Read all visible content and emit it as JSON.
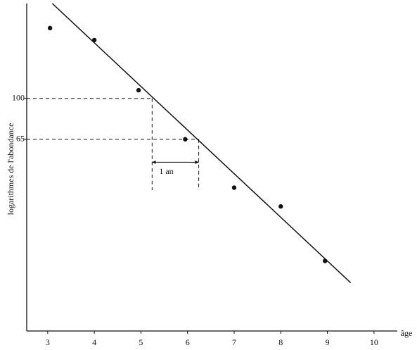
{
  "chart_data": {
    "type": "scatter",
    "xlabel": "âge",
    "ylabel": "logarithmes de l'abondance",
    "x": [
      3.05,
      4,
      4.95,
      5.95,
      7,
      8,
      8.95
    ],
    "values": [
      210,
      185,
      109,
      65,
      39,
      32,
      18
    ],
    "color": "#111111",
    "xlim": [
      2.55,
      10.5
    ],
    "xticks": [
      3,
      4,
      5,
      6,
      7,
      8,
      9,
      10
    ],
    "ylim": [
      8.6,
      272
    ],
    "yticks": [
      100,
      65
    ],
    "log_y": true,
    "fit": {
      "x": [
        3.1,
        9.5
      ],
      "values": [
        272,
        14.3
      ]
    },
    "guides": [
      {
        "x": 5.24,
        "y": 100,
        "bottom": 38
      },
      {
        "x": 6.24,
        "y": 65,
        "bottom": 38
      }
    ],
    "annotation": {
      "text": "1 an",
      "x": [
        5.24,
        6.24
      ],
      "y": 51
    }
  }
}
